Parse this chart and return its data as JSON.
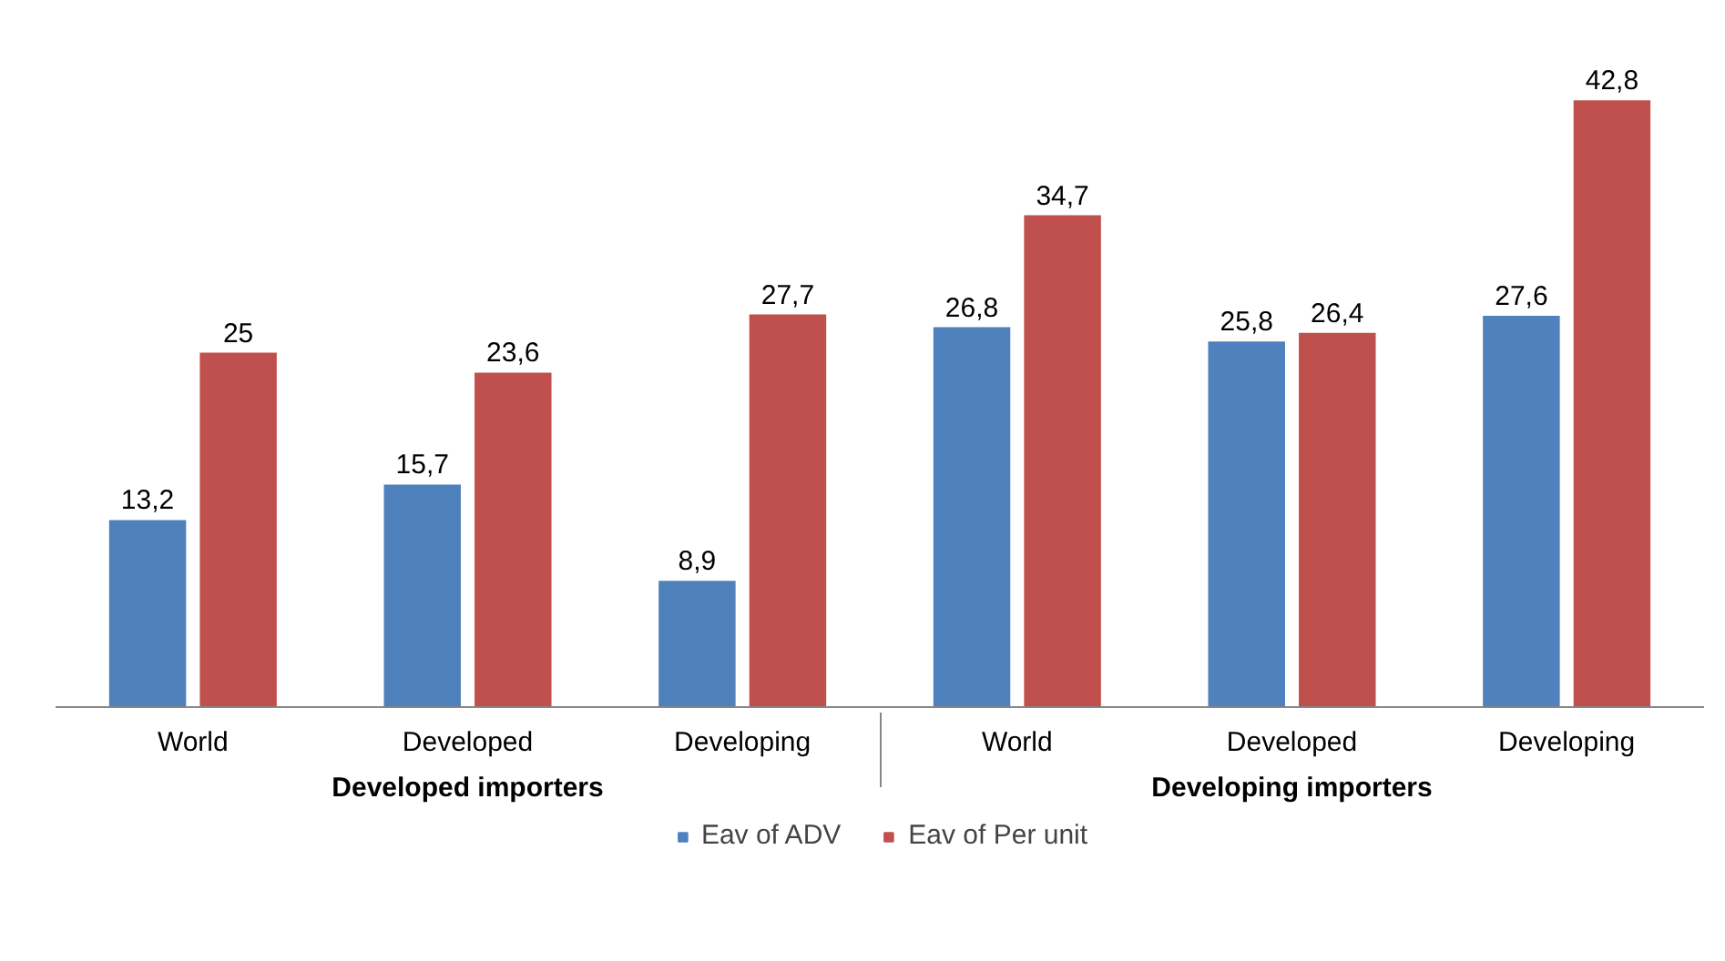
{
  "chart_data": {
    "type": "bar",
    "categories": [
      "World",
      "Developed",
      "Developing",
      "World",
      "Developed",
      "Developing"
    ],
    "annotations": [
      "Developed importers",
      "Developing importers"
    ],
    "series": [
      {
        "name": "Eav of ADV",
        "color": "#4f81bd",
        "values": [
          13.2,
          15.7,
          8.9,
          26.8,
          25.8,
          27.6
        ],
        "value_labels": [
          "13,2",
          "15,7",
          "8,9",
          "26,8",
          "25,8",
          "27,6"
        ]
      },
      {
        "name": "Eav of Per unit",
        "color": "#c0504d",
        "values": [
          25,
          23.6,
          27.7,
          34.7,
          26.4,
          42.8
        ],
        "value_labels": [
          "25",
          "23,6",
          "27,7",
          "34,7",
          "26,4",
          "42,8"
        ]
      }
    ],
    "grid": false,
    "legend": "bottom"
  }
}
